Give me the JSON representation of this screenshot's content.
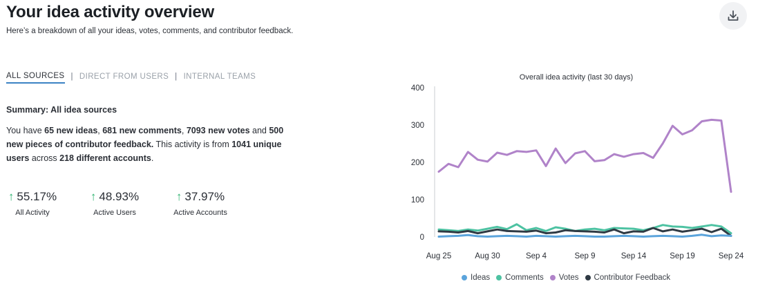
{
  "header": {
    "title": "Your idea activity overview",
    "subtitle": "Here’s a breakdown of all your ideas, votes, comments, and contributor feedback.",
    "download_icon": "download-icon"
  },
  "tabs": [
    {
      "label": "ALL SOURCES",
      "active": true
    },
    {
      "label": "DIRECT FROM USERS",
      "active": false
    },
    {
      "label": "INTERNAL TEAMS",
      "active": false
    }
  ],
  "tab_separator": "|",
  "summary": {
    "title": "Summary: All idea sources",
    "p1": "You have ",
    "ideas": "65 new ideas",
    "p2": ", ",
    "comments": "681 new comments",
    "p3": ", ",
    "votes": "7093 new votes",
    "p4": " and ",
    "feedback": "500 new pieces of contributor feedback.",
    "p5": " This activity is from ",
    "users": "1041 unique users",
    "p6": " across ",
    "accounts": "218 different accounts",
    "p7": "."
  },
  "metrics": [
    {
      "value": "55.17%",
      "label": "All Activity",
      "trend": "up"
    },
    {
      "value": "48.93%",
      "label": "Active Users",
      "trend": "up"
    },
    {
      "value": "37.97%",
      "label": "Active Accounts",
      "trend": "up"
    }
  ],
  "metric_arrow": "↑",
  "colors": {
    "ideas": "#5ba4dc",
    "comments": "#4dc2a2",
    "votes": "#b083c9",
    "feedback": "#2f3a44",
    "up": "#2db36f",
    "tab_active_underline": "#3b82c4"
  },
  "chart_data": {
    "type": "line",
    "title": "Overall idea activity (last 30 days)",
    "xlabel": "",
    "ylabel": "",
    "ylim": [
      0,
      400
    ],
    "yticks": [
      "0",
      "100",
      "200",
      "300",
      "400"
    ],
    "x_tick_labels": [
      "Aug 25",
      "Aug 30",
      "Sep 4",
      "Sep 9",
      "Sep 14",
      "Sep 19",
      "Sep 24"
    ],
    "x_tick_indices": [
      0,
      5,
      10,
      15,
      20,
      25,
      30
    ],
    "grid": false,
    "legend_position": "bottom",
    "series": [
      {
        "name": "Ideas",
        "color": "#5ba4dc",
        "values": [
          1,
          2,
          3,
          5,
          2,
          1,
          2,
          3,
          2,
          1,
          3,
          2,
          1,
          2,
          3,
          2,
          1,
          1,
          2,
          3,
          2,
          1,
          2,
          3,
          2,
          1,
          3,
          6,
          2,
          4,
          3
        ]
      },
      {
        "name": "Comments",
        "color": "#4dc2a2",
        "values": [
          20,
          18,
          16,
          20,
          17,
          22,
          27,
          21,
          34,
          18,
          24,
          16,
          26,
          22,
          16,
          20,
          22,
          18,
          24,
          23,
          22,
          18,
          24,
          32,
          28,
          27,
          24,
          28,
          32,
          28,
          10
        ]
      },
      {
        "name": "Votes",
        "color": "#b083c9",
        "values": [
          175,
          196,
          187,
          228,
          207,
          202,
          226,
          220,
          230,
          228,
          232,
          190,
          237,
          198,
          224,
          230,
          203,
          206,
          222,
          215,
          222,
          225,
          212,
          251,
          298,
          275,
          286,
          310,
          314,
          312,
          121
        ]
      },
      {
        "name": "Contributor Feedback",
        "color": "#2f3a44",
        "values": [
          15,
          14,
          12,
          16,
          10,
          15,
          20,
          16,
          15,
          14,
          17,
          10,
          12,
          18,
          16,
          15,
          14,
          12,
          20,
          10,
          15,
          14,
          24,
          15,
          20,
          14,
          18,
          22,
          13,
          22,
          3
        ]
      }
    ]
  }
}
